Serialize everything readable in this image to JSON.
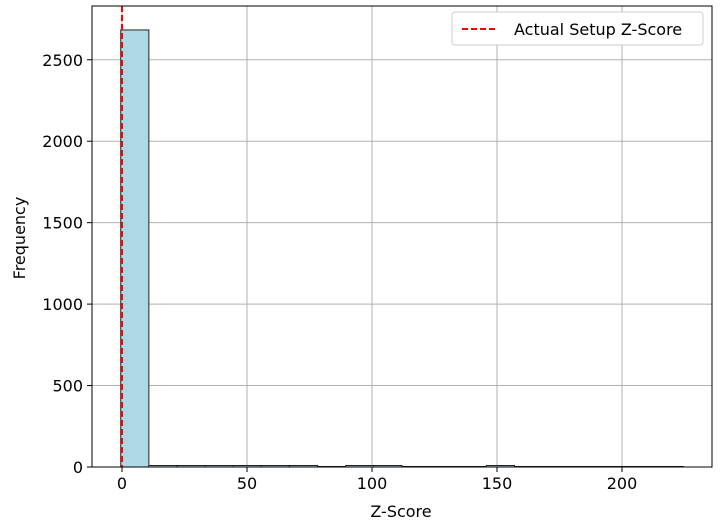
{
  "chart_data": {
    "type": "bar",
    "xlabel": "Z-Score",
    "ylabel": "Frequency",
    "xlim": [
      -12,
      236
    ],
    "ylim": [
      0,
      2830
    ],
    "x_ticks": [
      0,
      50,
      100,
      150,
      200
    ],
    "x_tick_labels": [
      "0",
      "50",
      "100",
      "150",
      "200"
    ],
    "y_ticks": [
      0,
      500,
      1000,
      1500,
      2000,
      2500
    ],
    "y_tick_labels": [
      "0",
      "500",
      "1000",
      "1500",
      "2000",
      "2500"
    ],
    "grid": true,
    "legend_position": "top-right",
    "bins": [
      {
        "start": -0.5,
        "end": 10.75,
        "count": 2683
      },
      {
        "start": 10.75,
        "end": 22.0,
        "count": 9
      },
      {
        "start": 22.0,
        "end": 33.25,
        "count": 7
      },
      {
        "start": 33.25,
        "end": 44.5,
        "count": 2
      },
      {
        "start": 44.5,
        "end": 55.75,
        "count": 2
      },
      {
        "start": 55.75,
        "end": 67.0,
        "count": 1
      },
      {
        "start": 67.0,
        "end": 78.25,
        "count": 1
      },
      {
        "start": 78.25,
        "end": 89.5,
        "count": 0
      },
      {
        "start": 89.5,
        "end": 100.75,
        "count": 1
      },
      {
        "start": 100.75,
        "end": 112.0,
        "count": 1
      },
      {
        "start": 112.0,
        "end": 123.25,
        "count": 0
      },
      {
        "start": 123.25,
        "end": 134.5,
        "count": 0
      },
      {
        "start": 134.5,
        "end": 145.75,
        "count": 0
      },
      {
        "start": 145.75,
        "end": 157.0,
        "count": 1
      },
      {
        "start": 157.0,
        "end": 168.25,
        "count": 0
      },
      {
        "start": 168.25,
        "end": 179.5,
        "count": 0
      },
      {
        "start": 179.5,
        "end": 190.75,
        "count": 0
      },
      {
        "start": 190.75,
        "end": 202.0,
        "count": 0
      },
      {
        "start": 202.0,
        "end": 213.25,
        "count": 0
      },
      {
        "start": 213.25,
        "end": 224.5,
        "count": 0
      }
    ],
    "reference_line": {
      "name": "Actual Setup Z-Score",
      "x": 0
    },
    "colors": {
      "bar_fill": "#add8e6",
      "bar_edge": "#222222",
      "reference_line": "#ff0000",
      "grid": "#b0b0b0",
      "axes": "#000000",
      "legend_border": "#cccccc"
    }
  }
}
